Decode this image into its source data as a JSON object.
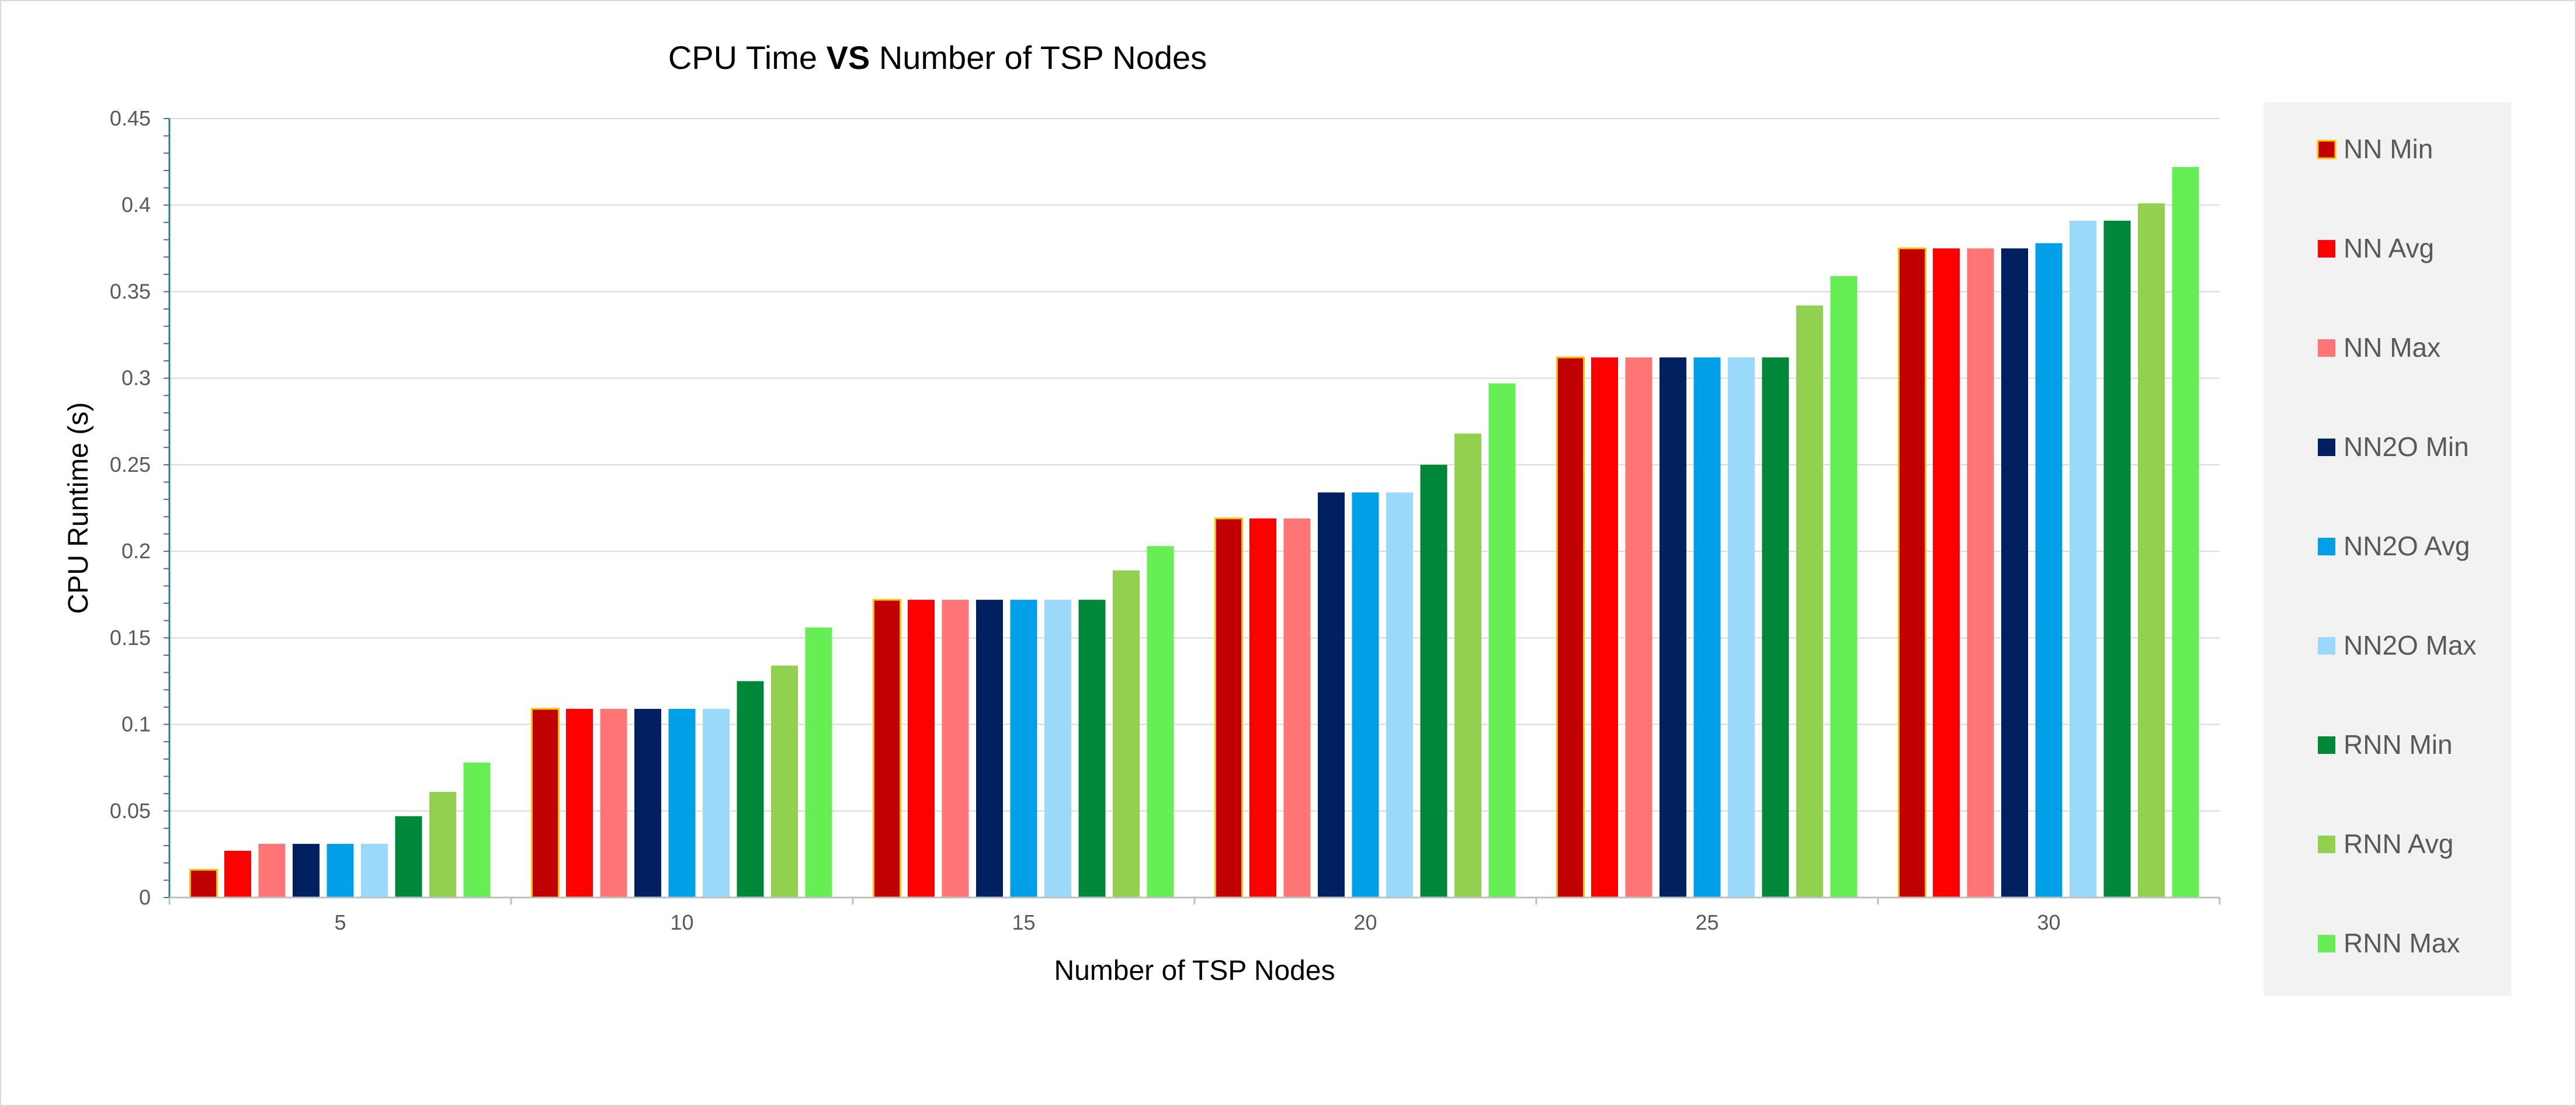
{
  "chart_data": {
    "type": "bar",
    "title_parts": {
      "before": "CPU Time ",
      "bold": "VS",
      "after": " Number of TSP Nodes"
    },
    "xlabel": "Number of TSP Nodes",
    "ylabel": "CPU Runtime (s)",
    "categories": [
      "5",
      "10",
      "15",
      "20",
      "25",
      "30"
    ],
    "ylim": [
      0,
      0.45
    ],
    "yticks": [
      "0",
      "0.05",
      "0.1",
      "0.15",
      "0.2",
      "0.25",
      "0.3",
      "0.35",
      "0.4",
      "0.45"
    ],
    "grid": true,
    "legend_position": "right",
    "series": [
      {
        "name": "NN Min",
        "color": "#c00000",
        "values": [
          0.016,
          0.109,
          0.172,
          0.219,
          0.312,
          0.375
        ]
      },
      {
        "name": "NN Avg",
        "color": "#ff0000",
        "values": [
          0.027,
          0.109,
          0.172,
          0.219,
          0.312,
          0.375
        ]
      },
      {
        "name": "NN Max",
        "color": "#ff7575",
        "values": [
          0.031,
          0.109,
          0.172,
          0.219,
          0.312,
          0.375
        ]
      },
      {
        "name": "NN2O Min",
        "color": "#002060",
        "values": [
          0.031,
          0.109,
          0.172,
          0.234,
          0.312,
          0.375
        ]
      },
      {
        "name": "NN2O Avg",
        "color": "#00a0e9",
        "values": [
          0.031,
          0.109,
          0.172,
          0.234,
          0.312,
          0.378
        ]
      },
      {
        "name": "NN2O Max",
        "color": "#9bd9fb",
        "values": [
          0.031,
          0.109,
          0.172,
          0.234,
          0.312,
          0.391
        ]
      },
      {
        "name": "RNN Min",
        "color": "#00883a",
        "values": [
          0.047,
          0.125,
          0.172,
          0.25,
          0.312,
          0.391
        ]
      },
      {
        "name": "RNN Avg",
        "color": "#92d050",
        "values": [
          0.061,
          0.134,
          0.189,
          0.268,
          0.342,
          0.401
        ]
      },
      {
        "name": "RNN Max",
        "color": "#66ee55",
        "values": [
          0.078,
          0.156,
          0.203,
          0.297,
          0.359,
          0.422
        ]
      }
    ]
  }
}
